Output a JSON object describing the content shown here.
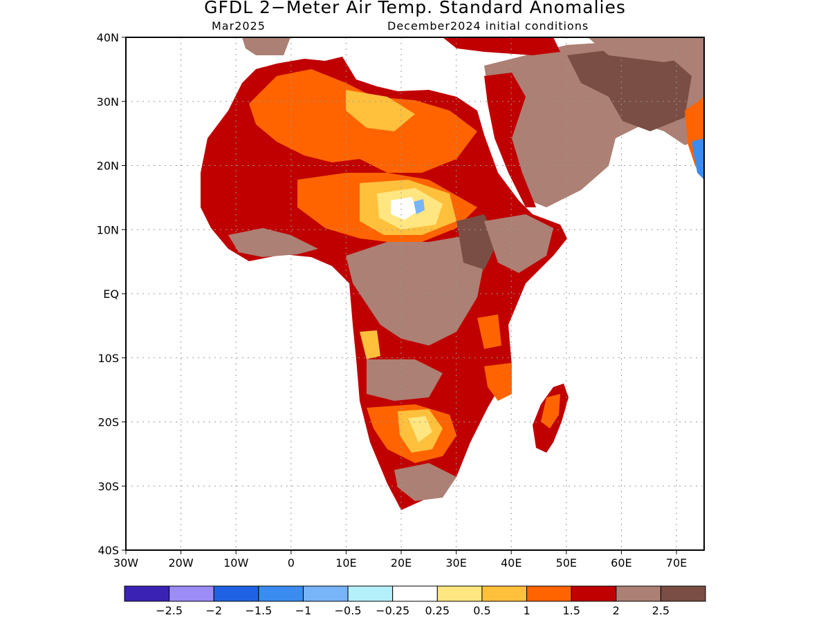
{
  "title": "GFDL 2−Meter Air Temp. Standard Anomalies",
  "subtitle_left": "Mar2025",
  "subtitle_right": "December2024 initial conditions",
  "lat_labels": [
    "40N",
    "30N",
    "20N",
    "10N",
    "EQ",
    "10S",
    "20S",
    "30S",
    "40S"
  ],
  "lon_labels": [
    "30W",
    "20W",
    "10W",
    "0",
    "10E",
    "20E",
    "30E",
    "40E",
    "50E",
    "60E",
    "70E"
  ],
  "colorbar": {
    "colors": [
      "#3a22b4",
      "#9c8cf8",
      "#1f63e4",
      "#3a8cf0",
      "#78b4f8",
      "#b4f0fa",
      "#ffffff",
      "#ffe680",
      "#ffc03c",
      "#ff6400",
      "#c00000",
      "#ac8074",
      "#7a4e44"
    ],
    "labels": [
      "−2.5",
      "−2",
      "−1.5",
      "−1",
      "−0.5",
      "−0.25",
      "0.25",
      "0.5",
      "1",
      "1.5",
      "2",
      "2.5"
    ]
  },
  "colors": {
    "very_warm": "#7a4e44",
    "warm": "#ac8074",
    "hot": "#c00000",
    "orange": "#ff6400",
    "light_orange": "#ffc03c",
    "yellow": "#ffe680",
    "cool_blue": "#78b4f8"
  }
}
